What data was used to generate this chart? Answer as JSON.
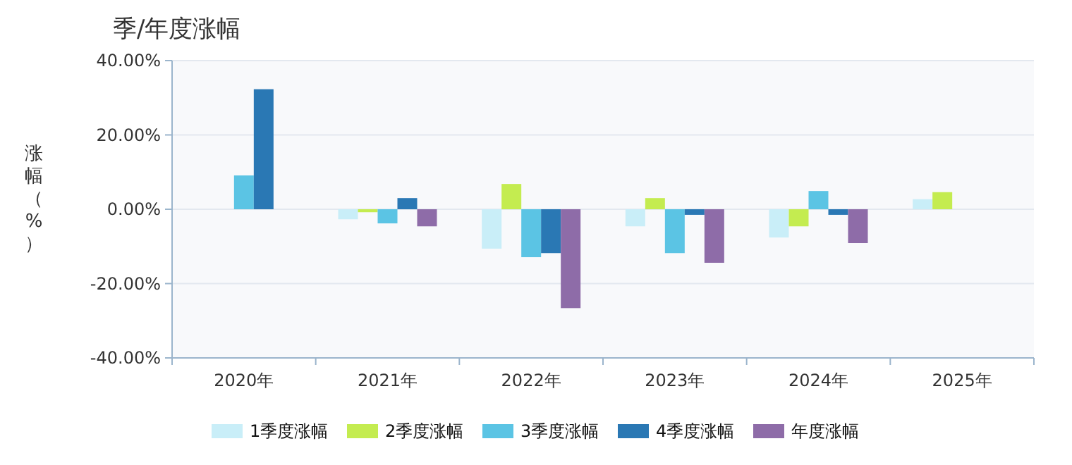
{
  "chart_data": {
    "type": "bar",
    "title": "季/年度涨幅",
    "ylabel": "涨幅（%）",
    "categories": [
      "2020年",
      "2021年",
      "2022年",
      "2023年",
      "2024年",
      "2025年"
    ],
    "series": [
      {
        "name": "1季度涨幅",
        "color": "#c9eef8",
        "values": [
          null,
          -2.7,
          -10.6,
          -4.6,
          -7.6,
          2.7
        ]
      },
      {
        "name": "2季度涨幅",
        "color": "#c4ec50",
        "values": [
          null,
          -0.8,
          6.8,
          3.0,
          -4.6,
          4.6
        ]
      },
      {
        "name": "3季度涨幅",
        "color": "#5bc4e4",
        "values": [
          9.1,
          -3.8,
          -12.9,
          -11.8,
          4.9,
          null
        ]
      },
      {
        "name": "4季度涨幅",
        "color": "#2a78b4",
        "values": [
          32.3,
          3.0,
          -11.8,
          -1.5,
          -1.5,
          null
        ]
      },
      {
        "name": "年度涨幅",
        "color": "#8e6ca8",
        "values": [
          null,
          -4.6,
          -26.6,
          -14.4,
          -9.1,
          null
        ]
      }
    ],
    "ylim": [
      -40,
      40
    ],
    "yticks": [
      {
        "value": -40,
        "label": "-40.00%"
      },
      {
        "value": -20,
        "label": "-20.00%"
      },
      {
        "value": 0,
        "label": "0.00%"
      },
      {
        "value": 20,
        "label": "20.00%"
      },
      {
        "value": 40,
        "label": "40.00%"
      }
    ],
    "grid": "y",
    "legend": "bottom"
  }
}
